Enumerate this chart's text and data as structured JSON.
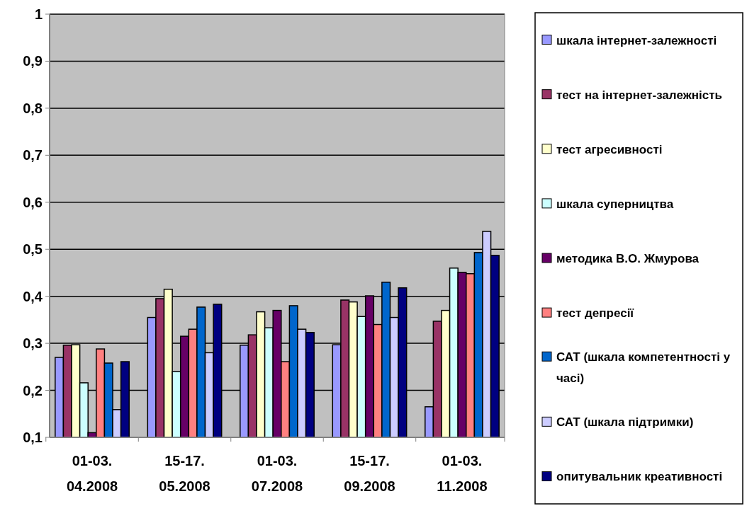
{
  "chart_data": {
    "type": "bar",
    "categories": [
      "01-03. 04.2008",
      "15-17. 05.2008",
      "01-03. 07.2008",
      "15-17. 09.2008",
      "01-03. 11.2008"
    ],
    "series": [
      {
        "name": "шкала інтернет-залежності",
        "color": "#9999ff",
        "values": [
          0.27,
          0.355,
          0.296,
          0.297,
          0.165
        ]
      },
      {
        "name": "тест на інтернет-залежність",
        "color": "#993366",
        "values": [
          0.296,
          0.395,
          0.318,
          0.392,
          0.347
        ]
      },
      {
        "name": "тест агресивності",
        "color": "#ffffcc",
        "values": [
          0.297,
          0.415,
          0.367,
          0.388,
          0.37
        ]
      },
      {
        "name": "шкала суперництва",
        "color": "#ccffff",
        "values": [
          0.216,
          0.24,
          0.333,
          0.357,
          0.46
        ]
      },
      {
        "name": "методика В.О. Жмурова",
        "color": "#660066",
        "values": [
          0.11,
          0.315,
          0.37,
          0.401,
          0.451
        ]
      },
      {
        "name": "тест депресії",
        "color": "#ff8080",
        "values": [
          0.288,
          0.33,
          0.261,
          0.34,
          0.448
        ]
      },
      {
        "name": "САТ (шкала компетентності у часі)",
        "color": "#0066cc",
        "values": [
          0.258,
          0.377,
          0.38,
          0.43,
          0.493
        ]
      },
      {
        "name": "САТ (шкала підтримки)",
        "color": "#ccccff",
        "values": [
          0.159,
          0.28,
          0.33,
          0.355,
          0.538
        ]
      },
      {
        "name": "опитувальник креативності",
        "color": "#000080",
        "values": [
          0.261,
          0.383,
          0.323,
          0.418,
          0.487
        ]
      }
    ],
    "ylim": [
      0.1,
      1
    ],
    "yticks": [
      {
        "value": 0.1,
        "label": "0,1"
      },
      {
        "value": 0.2,
        "label": "0,2"
      },
      {
        "value": 0.3,
        "label": "0,3"
      },
      {
        "value": 0.4,
        "label": "0,4"
      },
      {
        "value": 0.5,
        "label": "0,5"
      },
      {
        "value": 0.6,
        "label": "0,6"
      },
      {
        "value": 0.7,
        "label": "0,7"
      },
      {
        "value": 0.8,
        "label": "0,8"
      },
      {
        "value": 0.9,
        "label": "0,9"
      },
      {
        "value": 1,
        "label": "1"
      }
    ],
    "grid": "y",
    "legend": "right"
  }
}
